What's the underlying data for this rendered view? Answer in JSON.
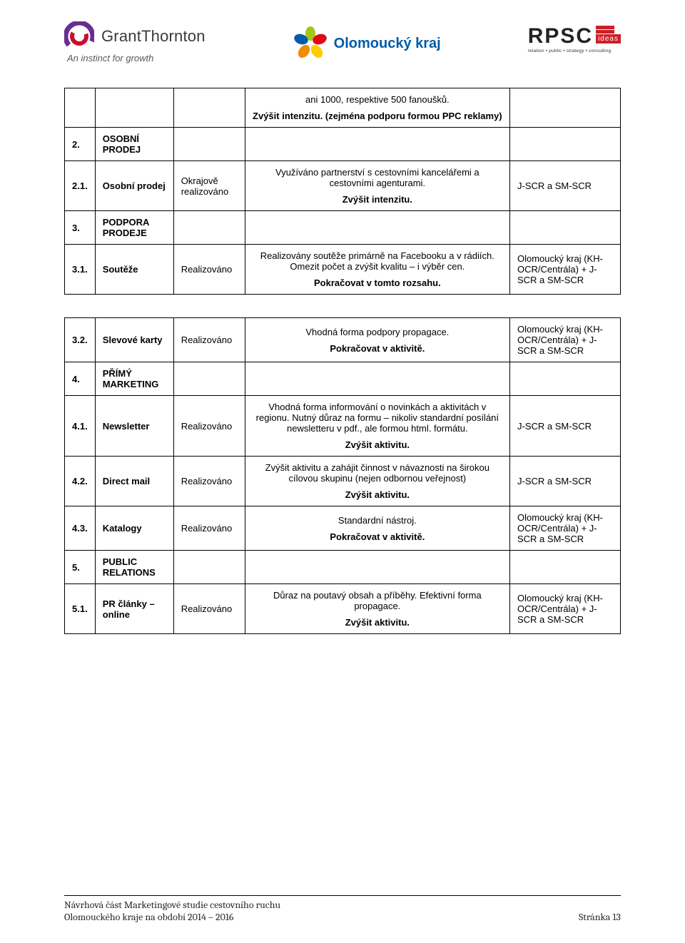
{
  "header": {
    "gt_name": "GrantThornton",
    "gt_tagline": "An instinct for growth",
    "ok_name": "Olomoucký kraj",
    "rpsc_text": "RPSC",
    "rpsc_ideas": "ideas",
    "rpsc_tagline": "relation • public • strategy • consulting",
    "gt_swirl_outer": "#6b2c91",
    "gt_swirl_inner": "#c8102e",
    "ok_petal_colors": [
      "#a0c814",
      "#e30613",
      "#ffcc00",
      "#f28c00",
      "#005ca9"
    ],
    "rpsc_red": "#cc2027"
  },
  "tables": {
    "t1": {
      "rows": [
        {
          "num": "",
          "name": "",
          "real": "",
          "desc": [
            "ani 1000, respektive 500 fanoušků.",
            "Zvýšit intenzitu. (zejména podporu formou PPC reklamy)"
          ],
          "bold_idx": [
            1
          ],
          "dest": ""
        },
        {
          "num": "2.",
          "name": "OSOBNÍ PRODEJ",
          "name_bold": true,
          "real": "",
          "desc": [],
          "dest": ""
        },
        {
          "num": "2.1.",
          "name": "Osobní prodej",
          "name_bold": true,
          "real": "Okrajově realizováno",
          "desc": [
            "Využíváno partnerství s cestovními kancelářemi a cestovními agenturami.",
            "Zvýšit intenzitu."
          ],
          "bold_idx": [
            1
          ],
          "dest": "J-SCR a SM-SCR"
        },
        {
          "num": "3.",
          "name": "PODPORA PRODEJE",
          "name_bold": true,
          "real": "",
          "desc": [],
          "dest": ""
        },
        {
          "num": "3.1.",
          "name": "Soutěže",
          "name_bold": true,
          "real": "Realizováno",
          "desc": [
            "Realizovány soutěže primárně na Facebooku a v rádiích. Omezit počet a zvýšit kvalitu – i výběr cen.",
            "Pokračovat v tomto rozsahu."
          ],
          "bold_idx": [
            1
          ],
          "dest": "Olomoucký kraj (KH-OCR/Centrála) + J-SCR a SM-SCR"
        }
      ]
    },
    "t2": {
      "rows": [
        {
          "num": "3.2.",
          "name": "Slevové karty",
          "name_bold": true,
          "real": "Realizováno",
          "desc": [
            "Vhodná forma podpory propagace.",
            "Pokračovat v aktivitě."
          ],
          "bold_idx": [
            1
          ],
          "dest": "Olomoucký kraj (KH-OCR/Centrála) + J-SCR a SM-SCR"
        },
        {
          "num": "4.",
          "name": "PŘÍMÝ MARKETING",
          "name_bold": true,
          "real": "",
          "desc": [],
          "dest": ""
        },
        {
          "num": "4.1.",
          "name": "Newsletter",
          "name_bold": true,
          "real": "Realizováno",
          "desc": [
            "Vhodná forma informování o novinkách a aktivitách v regionu. Nutný důraz na formu – nikoliv standardní posílání newsletteru v pdf., ale formou html. formátu.",
            "Zvýšit aktivitu."
          ],
          "bold_idx": [
            1
          ],
          "dest": "J-SCR a SM-SCR"
        },
        {
          "num": "4.2.",
          "name": "Direct mail",
          "name_bold": true,
          "real": "Realizováno",
          "desc": [
            "Zvýšit aktivitu a zahájit činnost v návaznosti na širokou cílovou skupinu (nejen odbornou veřejnost)",
            "Zvýšit aktivitu."
          ],
          "bold_idx": [
            1
          ],
          "dest": "J-SCR a SM-SCR"
        },
        {
          "num": "4.3.",
          "name": "Katalogy",
          "name_bold": true,
          "real": "Realizováno",
          "desc": [
            "Standardní nástroj.",
            "Pokračovat v aktivitě."
          ],
          "bold_idx": [
            1
          ],
          "dest": "Olomoucký kraj (KH-OCR/Centrála) + J-SCR a SM-SCR"
        },
        {
          "num": "5.",
          "name": "PUBLIC RELATIONS",
          "name_bold": true,
          "real": "",
          "desc": [],
          "dest": ""
        },
        {
          "num": "5.1.",
          "name": "PR články – online",
          "name_bold": true,
          "real": "Realizováno",
          "desc": [
            "Důraz na poutavý obsah a příběhy. Efektivní forma propagace.",
            "Zvýšit aktivitu."
          ],
          "bold_idx": [
            1
          ],
          "dest": "Olomoucký kraj (KH-OCR/Centrála) + J-SCR a SM-SCR"
        }
      ]
    }
  },
  "footer": {
    "line1": "Návrhová část Marketingové studie cestovního ruchu",
    "line2": "Olomouckého kraje na období 2014 – 2016",
    "page": "Stránka 13"
  }
}
